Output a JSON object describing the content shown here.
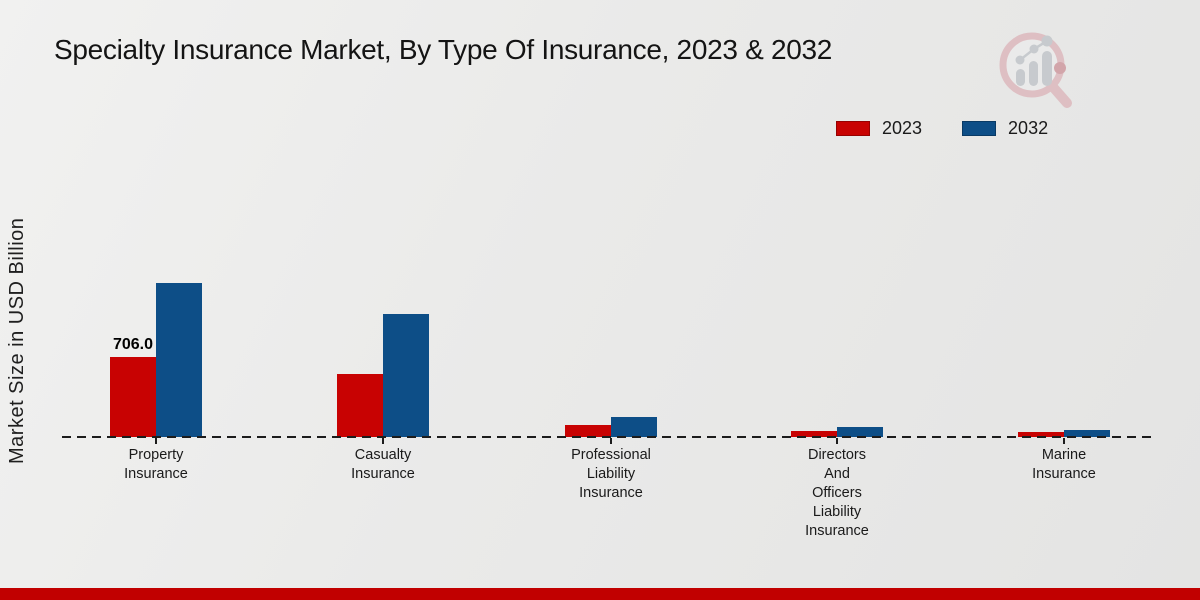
{
  "icons": {
    "brand_logo": "magnifier-bar-chart"
  },
  "colors": {
    "accent_red": "#c80202",
    "accent_blue": "#0d4e87",
    "footer_band": "#c10000",
    "background": "#eaeae9",
    "logo_pink": "#ddb9bd",
    "logo_gray": "#c2c6ca"
  },
  "chart_data": {
    "type": "bar",
    "title": "Specialty Insurance Market, By Type Of Insurance, 2023 & 2032",
    "ylabel": "Market Size in USD Billion",
    "xlabel": "",
    "categories": [
      "Property Insurance",
      "Casualty Insurance",
      "Professional Liability Insurance",
      "Directors And Officers Liability Insurance",
      "Marine Insurance"
    ],
    "series": [
      {
        "name": "2023",
        "color": "#c80202",
        "values": [
          706.0,
          556,
          106,
          53,
          40
        ]
      },
      {
        "name": "2032",
        "color": "#0d4e87",
        "values": [
          1360,
          1085,
          177,
          88,
          62
        ]
      }
    ],
    "value_labels": [
      {
        "series_index": 0,
        "category_index": 0,
        "text": "706.0"
      }
    ],
    "ylim": [
      0,
      1400
    ],
    "grid": false,
    "legend_position": "top-right",
    "baseline_style": "dashed"
  }
}
